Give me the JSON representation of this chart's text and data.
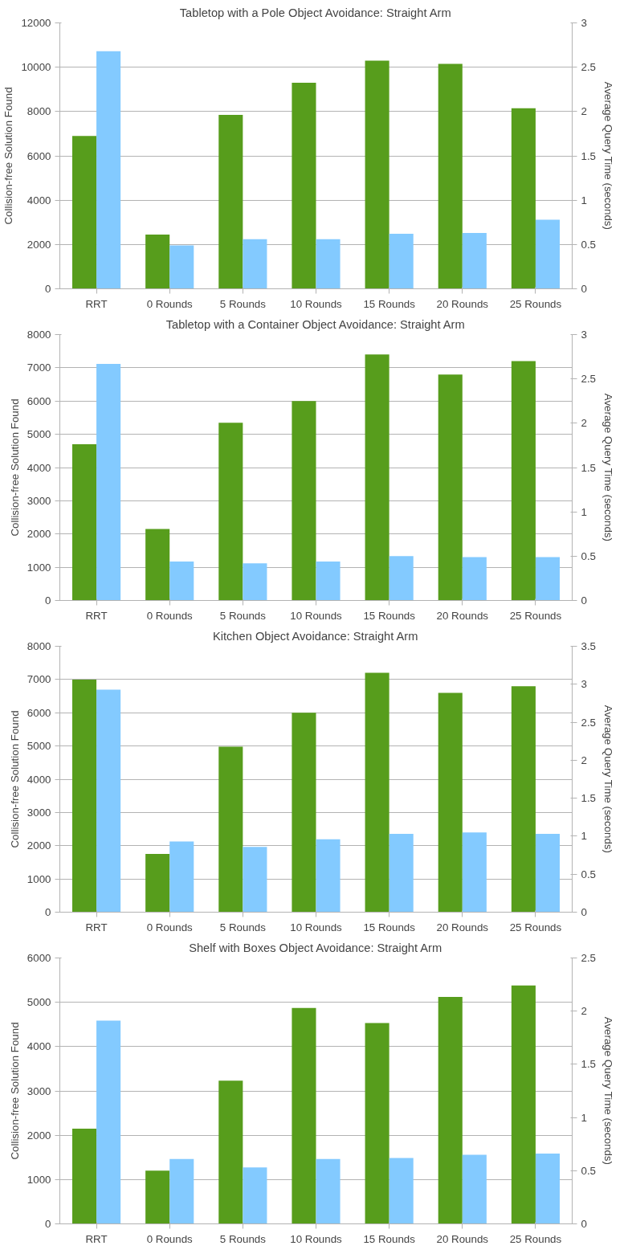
{
  "chart_data": [
    {
      "type": "bar",
      "title": "Tabletop with a Pole Object Avoidance: Straight Arm",
      "ylabel": "Collision-free Solution Found",
      "y2label": "Average Query Time (seconds)",
      "categories": [
        "RRT",
        "0 Rounds",
        "5 Rounds",
        "10 Rounds",
        "15 Rounds",
        "20 Rounds",
        "25 Rounds"
      ],
      "series": [
        {
          "color": "#579d1c",
          "values": [
            6900,
            2450,
            7850,
            9300,
            10300,
            10150,
            8150
          ]
        },
        {
          "color": "#83caff",
          "axis": "y2",
          "values": [
            2.68,
            0.49,
            0.56,
            0.56,
            0.62,
            0.63,
            0.78
          ]
        }
      ],
      "ylim": [
        0,
        12000
      ],
      "yticks": [
        0,
        2000,
        4000,
        6000,
        8000,
        10000,
        12000
      ],
      "y2lim": [
        0,
        3
      ],
      "y2ticks": [
        0,
        0.5,
        1,
        1.5,
        2,
        2.5,
        3
      ],
      "grid": "y"
    },
    {
      "type": "bar",
      "title": "Tabletop with a Container Object Avoidance: Straight Arm",
      "ylabel": "Collision-free Solution Found",
      "y2label": "Average Query Time (seconds)",
      "categories": [
        "RRT",
        "0 Rounds",
        "5 Rounds",
        "10 Rounds",
        "15 Rounds",
        "20 Rounds",
        "25 Rounds"
      ],
      "series": [
        {
          "color": "#579d1c",
          "values": [
            4700,
            2150,
            5350,
            6000,
            7400,
            6800,
            7200
          ]
        },
        {
          "color": "#83caff",
          "axis": "y2",
          "values": [
            2.67,
            0.44,
            0.42,
            0.44,
            0.5,
            0.49,
            0.49
          ]
        }
      ],
      "ylim": [
        0,
        8000
      ],
      "yticks": [
        0,
        1000,
        2000,
        3000,
        4000,
        5000,
        6000,
        7000,
        8000
      ],
      "y2lim": [
        0,
        3
      ],
      "y2ticks": [
        0,
        0.5,
        1,
        1.5,
        2,
        2.5,
        3
      ],
      "grid": "y"
    },
    {
      "type": "bar",
      "title": "Kitchen Object Avoidance: Straight Arm",
      "ylabel": "Collision-free Solution Found",
      "y2label": "Average Query Time (seconds)",
      "categories": [
        "RRT",
        "0 Rounds",
        "5 Rounds",
        "10 Rounds",
        "15 Rounds",
        "20 Rounds",
        "25 Rounds"
      ],
      "series": [
        {
          "color": "#579d1c",
          "values": [
            7000,
            1750,
            4980,
            6000,
            7200,
            6600,
            6800
          ]
        },
        {
          "color": "#83caff",
          "axis": "y2",
          "values": [
            2.93,
            0.93,
            0.86,
            0.96,
            1.03,
            1.05,
            1.03
          ]
        }
      ],
      "ylim": [
        0,
        8000
      ],
      "yticks": [
        0,
        1000,
        2000,
        3000,
        4000,
        5000,
        6000,
        7000,
        8000
      ],
      "y2lim": [
        0,
        3.5
      ],
      "y2ticks": [
        0,
        0.5,
        1,
        1.5,
        2,
        2.5,
        3,
        3.5
      ],
      "grid": "y"
    },
    {
      "type": "bar",
      "title": "Shelf with Boxes Object Avoidance: Straight Arm",
      "ylabel": "Collision-free Solution Found",
      "y2label": "Average Query Time (seconds)",
      "categories": [
        "RRT",
        "0 Rounds",
        "5 Rounds",
        "10 Rounds",
        "15 Rounds",
        "20 Rounds",
        "25 Rounds"
      ],
      "series": [
        {
          "color": "#579d1c",
          "values": [
            2150,
            1200,
            3230,
            4870,
            4530,
            5120,
            5380
          ]
        },
        {
          "color": "#83caff",
          "axis": "y2",
          "values": [
            1.91,
            0.61,
            0.53,
            0.61,
            0.62,
            0.65,
            0.66
          ]
        }
      ],
      "ylim": [
        0,
        6000
      ],
      "yticks": [
        0,
        1000,
        2000,
        3000,
        4000,
        5000,
        6000
      ],
      "y2lim": [
        0,
        2.5
      ],
      "y2ticks": [
        0,
        0.5,
        1,
        1.5,
        2,
        2.5
      ],
      "grid": "y"
    }
  ]
}
